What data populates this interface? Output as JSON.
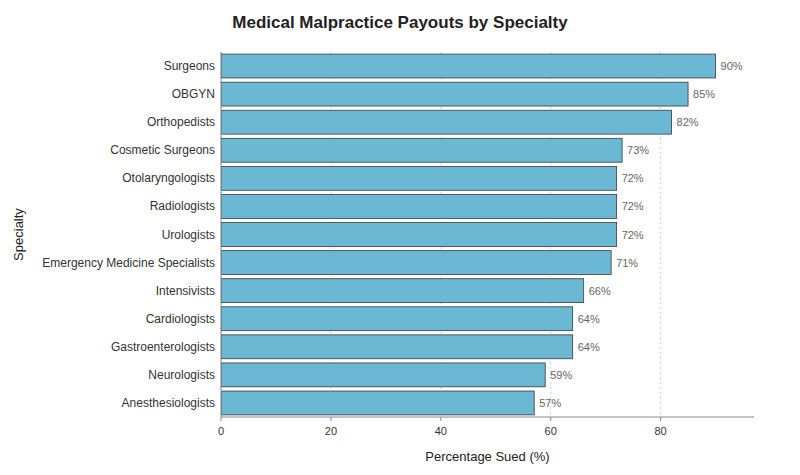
{
  "chart_data": {
    "type": "bar",
    "orientation": "horizontal",
    "title": "Medical Malpractice Payouts by Specialty",
    "xlabel": "Percentage Sued (%)",
    "ylabel": "Specialty",
    "categories": [
      "Anesthesiologists",
      "Neurologists",
      "Gastroenterologists",
      "Cardiologists",
      "Intensivists",
      "Emergency Medicine Specialists",
      "Urologists",
      "Radiologists",
      "Otolaryngologists",
      "Cosmetic Surgeons",
      "Orthopedists",
      "OBGYN",
      "Surgeons"
    ],
    "values": [
      57,
      59,
      64,
      64,
      66,
      71,
      72,
      72,
      72,
      73,
      82,
      85,
      90
    ],
    "value_labels": [
      "57%",
      "59%",
      "64%",
      "64%",
      "66%",
      "71%",
      "72%",
      "72%",
      "72%",
      "73%",
      "82%",
      "85%",
      "90%"
    ],
    "data_labels": true,
    "color": "#6bb8d4",
    "xlim": [
      0,
      97
    ],
    "xticks": [
      0,
      20,
      40,
      60,
      80
    ],
    "grid": true
  }
}
